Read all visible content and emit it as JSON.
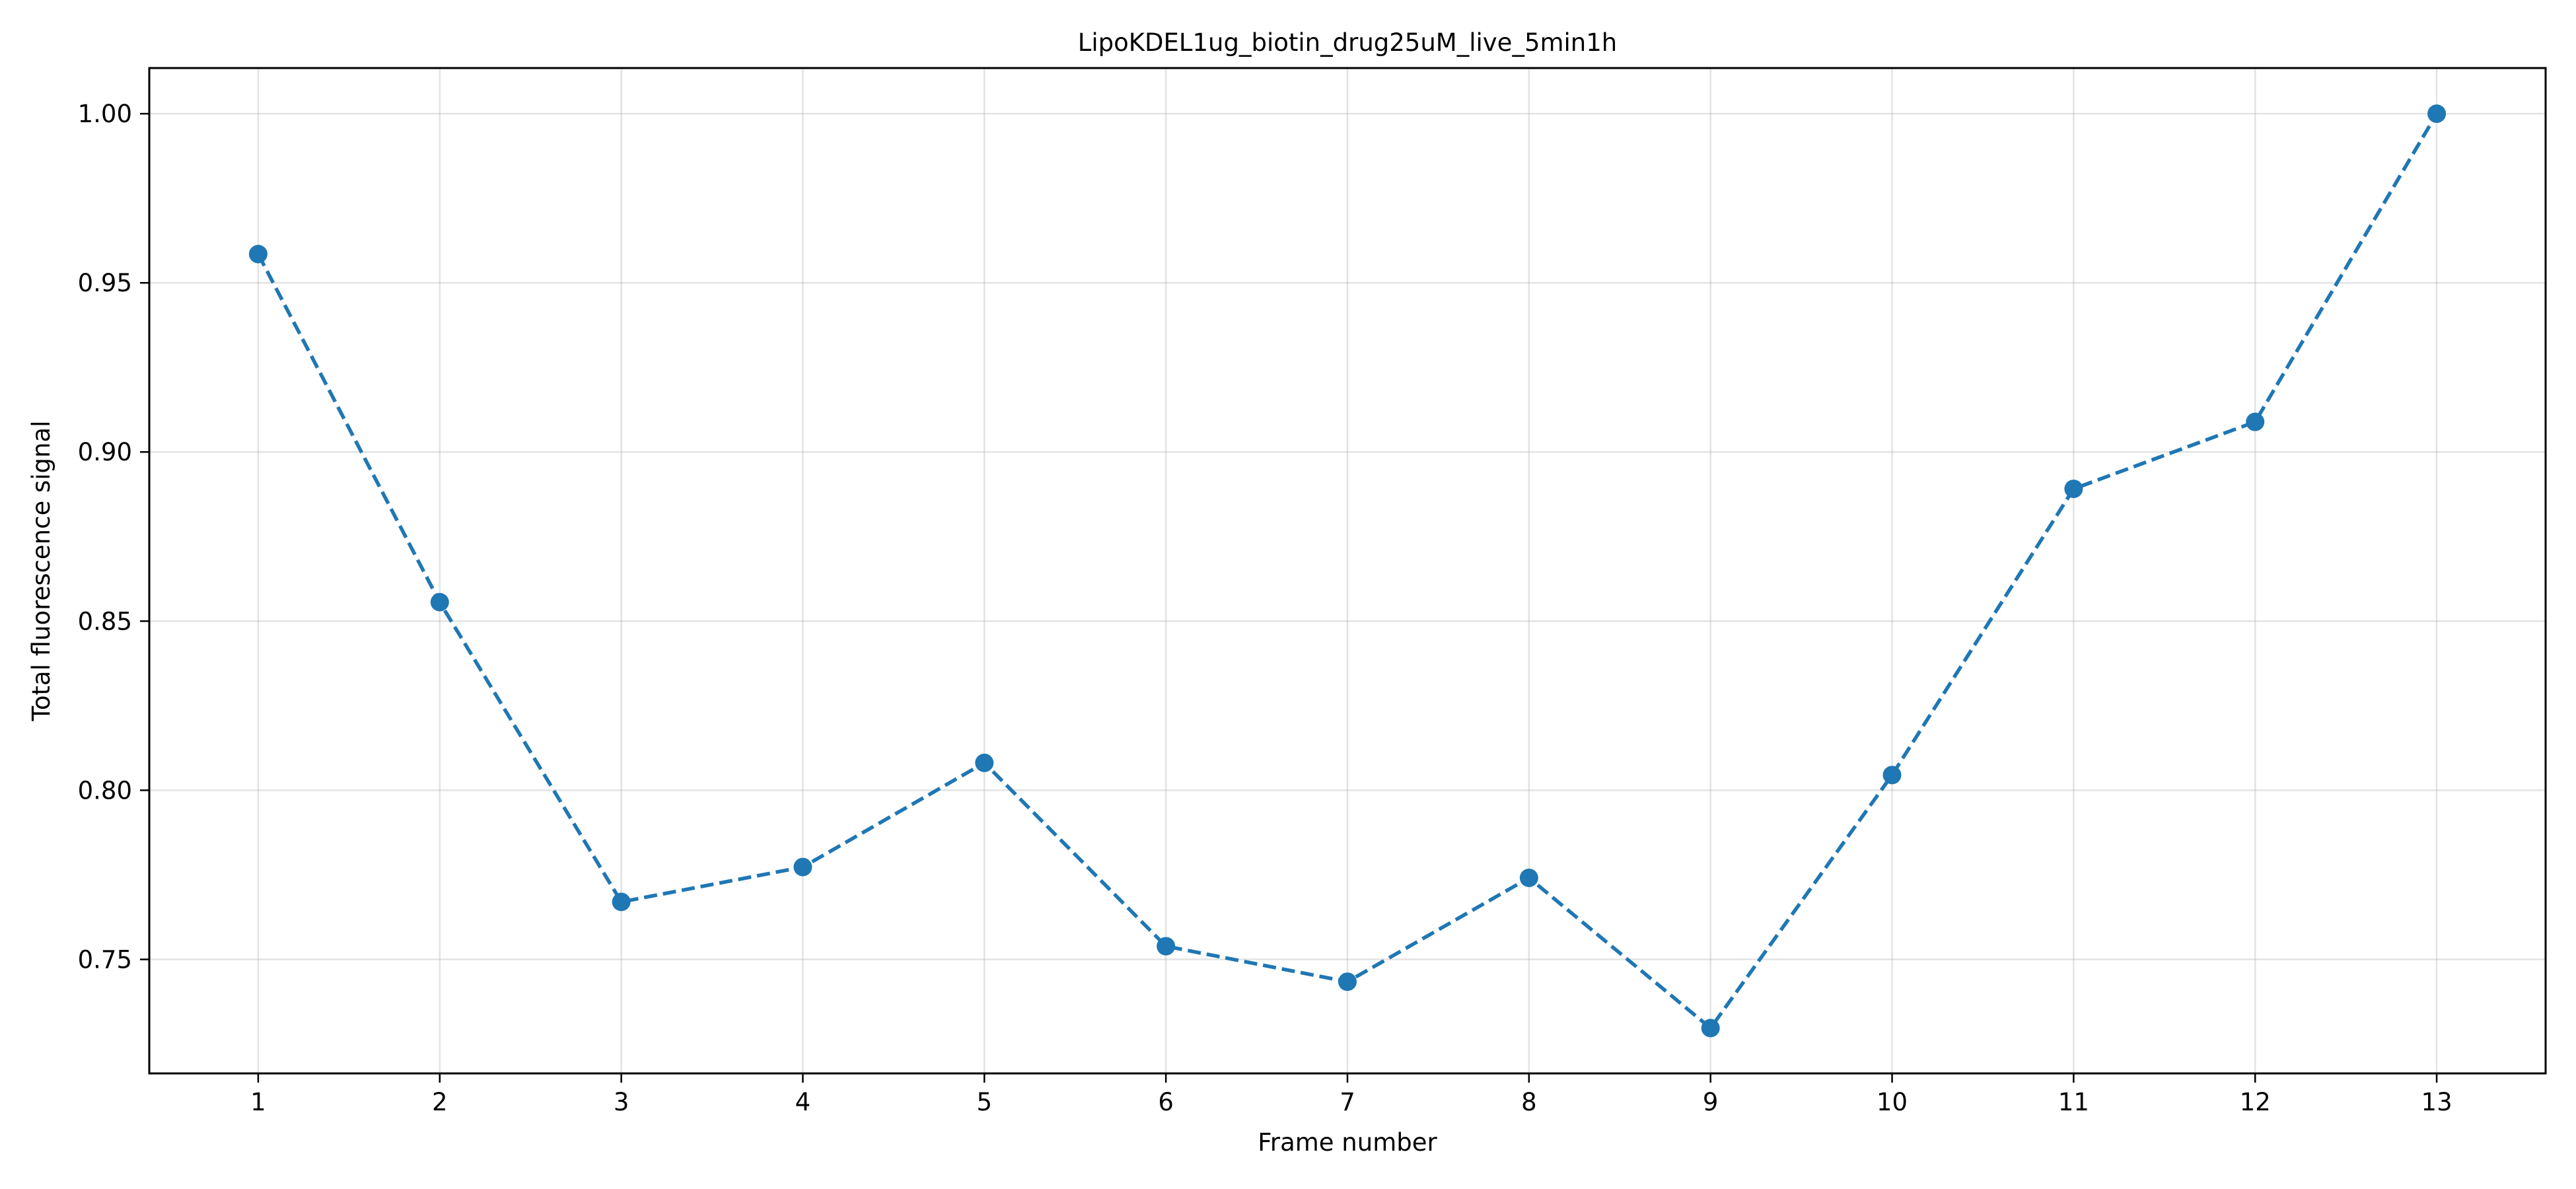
{
  "chart_data": {
    "type": "line",
    "title": "LipoKDEL1ug_biotin_drug25uM_live_5min1h",
    "xlabel": "Frame number",
    "ylabel": "Total fluorescence signal",
    "x": [
      1,
      2,
      3,
      4,
      5,
      6,
      7,
      8,
      9,
      10,
      11,
      12,
      13
    ],
    "x_tick_labels": [
      "1",
      "2",
      "3",
      "4",
      "5",
      "6",
      "7",
      "8",
      "9",
      "10",
      "11",
      "12",
      "13"
    ],
    "series": [
      {
        "values": [
          0.9585,
          0.8556,
          0.767,
          0.7773,
          0.8081,
          0.7539,
          0.7434,
          0.7741,
          0.7297,
          0.8045,
          0.8891,
          0.9089,
          1.0
        ],
        "color": "#1f77b4",
        "line_style": "dashed",
        "marker": "circle"
      }
    ],
    "xlim": [
      0.4,
      13.6
    ],
    "ylim": [
      0.7163,
      1.0135
    ],
    "y_ticks": [
      0.75,
      0.8,
      0.85,
      0.9,
      0.95,
      1.0
    ],
    "y_tick_labels": [
      "0.75",
      "0.80",
      "0.85",
      "0.90",
      "0.95",
      "1.00"
    ],
    "grid": true,
    "legend": "none"
  }
}
